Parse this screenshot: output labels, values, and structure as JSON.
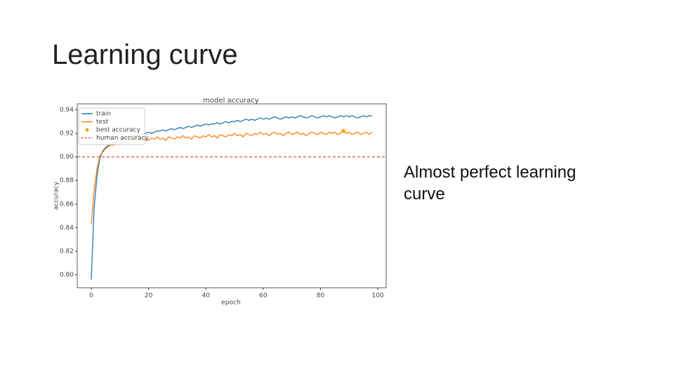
{
  "slide": {
    "title": "Learning curve",
    "text": "Almost perfect learning curve"
  },
  "chart_data": {
    "type": "line",
    "title": "model accuracy",
    "x_label": "epoch",
    "y_label": "accuracy",
    "x": [
      0,
      1,
      2,
      3,
      4,
      5,
      6,
      7,
      8,
      9,
      10,
      11,
      12,
      13,
      14,
      15,
      16,
      17,
      18,
      19,
      20,
      21,
      22,
      23,
      24,
      25,
      26,
      27,
      28,
      29,
      30,
      31,
      32,
      33,
      34,
      35,
      36,
      37,
      38,
      39,
      40,
      41,
      42,
      43,
      44,
      45,
      46,
      47,
      48,
      49,
      50,
      51,
      52,
      53,
      54,
      55,
      56,
      57,
      58,
      59,
      60,
      61,
      62,
      63,
      64,
      65,
      66,
      67,
      68,
      69,
      70,
      71,
      72,
      73,
      74,
      75,
      76,
      77,
      78,
      79,
      80,
      81,
      82,
      83,
      84,
      85,
      86,
      87,
      88,
      89,
      90,
      91,
      92,
      93,
      94,
      95,
      96,
      97,
      98
    ],
    "series": [
      {
        "name": "train",
        "color": "#1f77b4",
        "values": [
          0.796,
          0.857,
          0.884,
          0.899,
          0.905,
          0.908,
          0.91,
          0.911,
          0.912,
          0.913,
          0.914,
          0.915,
          0.916,
          0.916,
          0.917,
          0.918,
          0.918,
          0.919,
          0.919,
          0.92,
          0.921,
          0.92,
          0.921,
          0.922,
          0.922,
          0.923,
          0.922,
          0.923,
          0.924,
          0.923,
          0.924,
          0.925,
          0.924,
          0.925,
          0.926,
          0.925,
          0.926,
          0.927,
          0.926,
          0.927,
          0.928,
          0.927,
          0.928,
          0.928,
          0.929,
          0.928,
          0.929,
          0.93,
          0.929,
          0.93,
          0.93,
          0.931,
          0.93,
          0.931,
          0.932,
          0.931,
          0.932,
          0.931,
          0.932,
          0.933,
          0.932,
          0.933,
          0.932,
          0.933,
          0.934,
          0.933,
          0.932,
          0.933,
          0.934,
          0.933,
          0.934,
          0.933,
          0.934,
          0.935,
          0.934,
          0.933,
          0.934,
          0.935,
          0.934,
          0.933,
          0.934,
          0.935,
          0.934,
          0.935,
          0.934,
          0.933,
          0.934,
          0.935,
          0.934,
          0.935,
          0.934,
          0.935,
          0.934,
          0.933,
          0.934,
          0.935,
          0.934,
          0.935,
          0.935
        ]
      },
      {
        "name": "test",
        "color": "#ff7f0e",
        "values": [
          0.843,
          0.872,
          0.89,
          0.901,
          0.904,
          0.907,
          0.909,
          0.91,
          0.91,
          0.911,
          0.912,
          0.911,
          0.913,
          0.912,
          0.914,
          0.913,
          0.915,
          0.914,
          0.916,
          0.915,
          0.914,
          0.916,
          0.915,
          0.917,
          0.915,
          0.916,
          0.914,
          0.917,
          0.916,
          0.915,
          0.917,
          0.916,
          0.918,
          0.916,
          0.917,
          0.915,
          0.918,
          0.917,
          0.916,
          0.918,
          0.917,
          0.919,
          0.917,
          0.918,
          0.916,
          0.919,
          0.918,
          0.917,
          0.919,
          0.918,
          0.92,
          0.918,
          0.919,
          0.917,
          0.92,
          0.919,
          0.918,
          0.92,
          0.919,
          0.921,
          0.919,
          0.92,
          0.918,
          0.92,
          0.921,
          0.919,
          0.92,
          0.918,
          0.92,
          0.921,
          0.919,
          0.92,
          0.921,
          0.919,
          0.92,
          0.918,
          0.92,
          0.921,
          0.92,
          0.919,
          0.921,
          0.92,
          0.919,
          0.921,
          0.92,
          0.921,
          0.919,
          0.92,
          0.922,
          0.92,
          0.921,
          0.919,
          0.92,
          0.921,
          0.919,
          0.92,
          0.921,
          0.919,
          0.921
        ]
      }
    ],
    "best": {
      "name": "best accuracy",
      "x": 88,
      "y": 0.922,
      "color": "#f0a800"
    },
    "reference": {
      "name": "human accuracy",
      "value": 0.9,
      "color": "#d62728"
    },
    "xlim": [
      -4.9,
      102.9
    ],
    "ylim": [
      0.789,
      0.945
    ],
    "xticks": [
      0,
      20,
      40,
      60,
      80,
      100
    ],
    "yticks": [
      {
        "value": 0.8,
        "label": "0.80"
      },
      0.82,
      0.84,
      0.86,
      0.88,
      {
        "value": 0.9,
        "label": "0.90"
      },
      0.92,
      0.94
    ]
  }
}
